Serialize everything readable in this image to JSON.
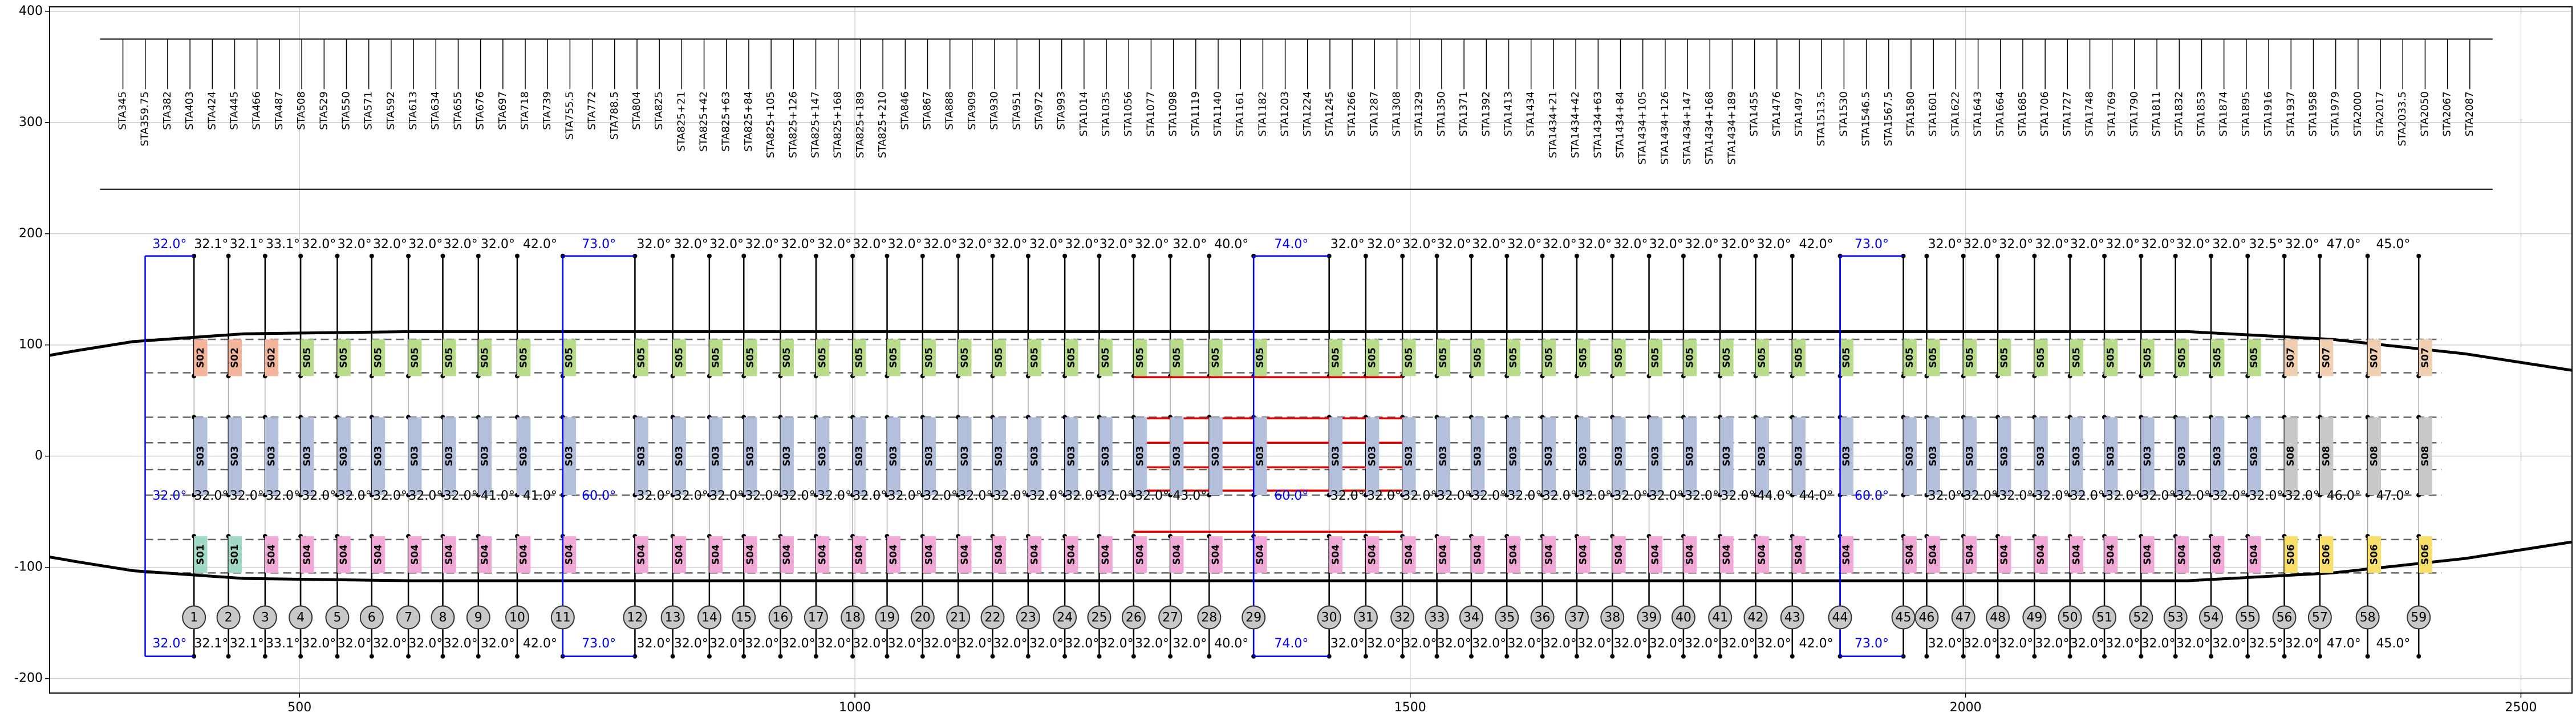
{
  "chart_data": {
    "type": "plan",
    "xlim": [
      275,
      2546
    ],
    "ylim": [
      -213,
      404
    ],
    "xticks": [
      500,
      1000,
      1500,
      2000,
      2500
    ],
    "yticks": [
      -200,
      -100,
      0,
      100,
      200,
      300,
      400
    ],
    "grid": true,
    "stations": [
      "STA345",
      "STA359.75",
      "STA382",
      "STA403",
      "STA424",
      "STA445",
      "STA466",
      "STA487",
      "STA508",
      "STA529",
      "STA550",
      "STA571",
      "STA592",
      "STA613",
      "STA634",
      "STA655",
      "STA676",
      "STA697",
      "STA718",
      "STA739",
      "STA755.5",
      "STA772",
      "STA788.5",
      "STA804",
      "STA825",
      "STA825+21",
      "STA825+42",
      "STA825+63",
      "STA825+84",
      "STA825+105",
      "STA825+126",
      "STA825+147",
      "STA825+168",
      "STA825+189",
      "STA825+210",
      "STA846",
      "STA867",
      "STA888",
      "STA909",
      "STA930",
      "STA951",
      "STA972",
      "STA993",
      "STA1014",
      "STA1035",
      "STA1056",
      "STA1077",
      "STA1098",
      "STA1119",
      "STA1140",
      "STA1161",
      "STA1182",
      "STA1203",
      "STA1224",
      "STA1245",
      "STA1266",
      "STA1287",
      "STA1308",
      "STA1329",
      "STA1350",
      "STA1371",
      "STA1392",
      "STA1413",
      "STA1434",
      "STA1434+21",
      "STA1434+42",
      "STA1434+63",
      "STA1434+84",
      "STA1434+105",
      "STA1434+126",
      "STA1434+147",
      "STA1434+168",
      "STA1434+189",
      "STA1455",
      "STA1476",
      "STA1497",
      "STA1513.5",
      "STA1530",
      "STA1546.5",
      "STA1567.5",
      "STA1580",
      "STA1601",
      "STA1622",
      "STA1643",
      "STA1664",
      "STA1685",
      "STA1706",
      "STA1727",
      "STA1748",
      "STA1769",
      "STA1790",
      "STA1811",
      "STA1832",
      "STA1853",
      "STA1874",
      "STA1895",
      "STA1916",
      "STA1937",
      "STA1958",
      "STA1979",
      "STA2000",
      "STA2017",
      "STA2033.5",
      "STA2050",
      "STA2067",
      "STA2087"
    ],
    "station_xlim": [
      341,
      2454
    ],
    "station_ylim": [
      240,
      375
    ],
    "lead_x": 361,
    "frame_numbers": [
      1,
      2,
      3,
      4,
      5,
      6,
      7,
      8,
      9,
      10,
      11,
      12,
      13,
      14,
      15,
      16,
      17,
      18,
      19,
      20,
      21,
      22,
      23,
      24,
      25,
      26,
      27,
      28,
      29,
      30,
      31,
      32,
      33,
      34,
      35,
      36,
      37,
      38,
      39,
      40,
      41,
      42,
      43,
      44,
      45,
      46,
      47,
      48,
      49,
      50,
      51,
      52,
      53,
      54,
      55,
      56,
      57,
      58,
      59
    ],
    "frame_x": [
      405,
      436,
      469,
      501,
      534,
      565,
      598,
      629,
      661,
      696,
      737,
      802,
      836,
      869,
      900,
      933,
      965,
      998,
      1029,
      1061,
      1093,
      1124,
      1156,
      1189,
      1220,
      1251,
      1284,
      1319,
      1359,
      1427,
      1460,
      1493,
      1524,
      1555,
      1587,
      1619,
      1650,
      1682,
      1715,
      1746,
      1779,
      1811,
      1844,
      1887,
      1944,
      1965,
      1998,
      2029,
      2062,
      2094,
      2125,
      2158,
      2189,
      2221,
      2254,
      2287,
      2319,
      2362,
      2408
    ],
    "top_angles": [
      "32.0°",
      "32.1°",
      "32.1°",
      "33.1°",
      "32.0°",
      "32.0°",
      "32.0°",
      "32.0°",
      "32.0°",
      "32.0°",
      "42.0°",
      "73.0°",
      "32.0°",
      "32.0°",
      "32.0°",
      "32.0°",
      "32.0°",
      "32.0°",
      "32.0°",
      "32.0°",
      "32.0°",
      "32.0°",
      "32.0°",
      "32.0°",
      "32.0°",
      "32.0°",
      "32.0°",
      "32.0°",
      "40.0°",
      "74.0°",
      "32.0°",
      "32.0°",
      "32.0°",
      "32.0°",
      "32.0°",
      "32.0°",
      "32.0°",
      "32.0°",
      "32.0°",
      "32.0°",
      "32.0°",
      "32.0°",
      "32.0°",
      "42.0°",
      "73.0°",
      null,
      "32.0°",
      "32.0°",
      "32.0°",
      "32.0°",
      "32.0°",
      "32.0°",
      "32.0°",
      "32.0°",
      "32.0°",
      "32.5°",
      "32.0°",
      "47.0°",
      "45.0°"
    ],
    "middle_angles": [
      "32.0°",
      "32.0°",
      "32.0°",
      "32.0°",
      "32.0°",
      "32.0°",
      "32.0°",
      "32.0°",
      "32.0°",
      "41.0°",
      "41.0°",
      "60.0°",
      "32.0°",
      "32.0°",
      "32.0°",
      "32.0°",
      "32.0°",
      "32.0°",
      "32.0°",
      "32.0°",
      "32.0°",
      "32.0°",
      "32.0°",
      "32.0°",
      "32.0°",
      "32.0°",
      "32.0°",
      "43.0°",
      null,
      "60.0°",
      "32.0°",
      "32.0°",
      "32.0°",
      "32.0°",
      "32.0°",
      "32.0°",
      "32.0°",
      "32.0°",
      "32.0°",
      "32.0°",
      "32.0°",
      "32.0°",
      "44.0°",
      "44.0°",
      "60.0°",
      null,
      "32.0°",
      "32.0°",
      "32.0°",
      "32.0°",
      "32.0°",
      "32.0°",
      "32.0°",
      "32.0°",
      "32.0°",
      "32.0°",
      "32.0°",
      "46.0°",
      "47.0°"
    ],
    "bottom_angles": [
      "32.0°",
      "32.1°",
      "32.1°",
      "33.1°",
      "32.0°",
      "32.0°",
      "32.0°",
      "32.0°",
      "32.0°",
      "32.0°",
      "42.0°",
      "73.0°",
      "32.0°",
      "32.0°",
      "32.0°",
      "32.0°",
      "32.0°",
      "32.0°",
      "32.0°",
      "32.0°",
      "32.0°",
      "32.0°",
      "32.0°",
      "32.0°",
      "32.0°",
      "32.0°",
      "32.0°",
      "32.0°",
      "40.0°",
      "74.0°",
      "32.0°",
      "32.0°",
      "32.0°",
      "32.0°",
      "32.0°",
      "32.0°",
      "32.0°",
      "32.0°",
      "32.0°",
      "32.0°",
      "32.0°",
      "32.0°",
      "32.0°",
      "42.0°",
      "73.0°",
      null,
      "32.0°",
      "32.0°",
      "32.0°",
      "32.0°",
      "32.0°",
      "32.0°",
      "32.0°",
      "32.0°",
      "32.0°",
      "32.5°",
      "32.0°",
      "47.0°",
      "45.0°"
    ],
    "angle_y": [
      190,
      -36,
      -169
    ],
    "blue_gaps": [
      0,
      11,
      29,
      44
    ],
    "highlight_color": "#0000ff",
    "upper_labels": [
      "S02",
      "S02",
      "S02",
      "S05",
      "S05",
      "S05",
      "S05",
      "S05",
      "S05",
      "S05",
      "S05",
      "S05",
      "S05",
      "S05",
      "S05",
      "S05",
      "S05",
      "S05",
      "S05",
      "S05",
      "S05",
      "S05",
      "S05",
      "S05",
      "S05",
      "S05",
      "S05",
      "S05",
      "S05",
      "S05",
      "S05",
      "S05",
      "S05",
      "S05",
      "S05",
      "S05",
      "S05",
      "S05",
      "S05",
      "S05",
      "S05",
      "S05",
      "S05",
      "S05",
      "S05",
      "S05",
      "S05",
      "S05",
      "S05",
      "S05",
      "S05",
      "S05",
      "S05",
      "S05",
      "S05",
      "S07",
      "S07",
      "S07",
      "S07"
    ],
    "middle_labels": [
      "S03",
      "S03",
      "S03",
      "S03",
      "S03",
      "S03",
      "S03",
      "S03",
      "S03",
      "S03",
      "S03",
      "S03",
      "S03",
      "S03",
      "S03",
      "S03",
      "S03",
      "S03",
      "S03",
      "S03",
      "S03",
      "S03",
      "S03",
      "S03",
      "S03",
      "S03",
      "S03",
      "S03",
      "S03",
      "S03",
      "S03",
      "S03",
      "S03",
      "S03",
      "S03",
      "S03",
      "S03",
      "S03",
      "S03",
      "S03",
      "S03",
      "S03",
      "S03",
      "S03",
      "S03",
      "S03",
      "S03",
      "S03",
      "S03",
      "S03",
      "S03",
      "S03",
      "S03",
      "S03",
      "S03",
      "S08",
      "S08",
      "S08",
      "S08"
    ],
    "lower_labels": [
      "S01",
      "S01",
      "S04",
      "S04",
      "S04",
      "S04",
      "S04",
      "S04",
      "S04",
      "S04",
      "S04",
      "S04",
      "S04",
      "S04",
      "S04",
      "S04",
      "S04",
      "S04",
      "S04",
      "S04",
      "S04",
      "S04",
      "S04",
      "S04",
      "S04",
      "S04",
      "S04",
      "S04",
      "S04",
      "S04",
      "S04",
      "S04",
      "S04",
      "S04",
      "S04",
      "S04",
      "S04",
      "S04",
      "S04",
      "S04",
      "S04",
      "S04",
      "S04",
      "S04",
      "S04",
      "S04",
      "S04",
      "S04",
      "S04",
      "S04",
      "S04",
      "S04",
      "S04",
      "S04",
      "S04",
      "S06",
      "S06",
      "S06",
      "S06"
    ],
    "segment_colors": {
      "S01": "#9fd8c5",
      "S02": "#f4b49a",
      "S03": "#b4bfdc",
      "S04": "#f0a8d6",
      "S05": "#b8dc8a",
      "S06": "#f7df6a",
      "S07": "#efcfb0",
      "S08": "#c8c8c8"
    },
    "upper_band": [
      72,
      105
    ],
    "middle_band": [
      -35,
      35
    ],
    "lower_band": [
      -105,
      -72
    ],
    "dashed_y": [
      105,
      75,
      35,
      12,
      -12,
      -35,
      -75,
      -105
    ],
    "red_x": [
      1251,
      1493
    ],
    "red_y": [
      71,
      34,
      12,
      -10,
      -31,
      -68
    ],
    "hull_top": {
      "x": [
        225,
        300,
        350,
        450,
        600,
        2200,
        2330,
        2450,
        2560
      ],
      "y": [
        82,
        95,
        103,
        110,
        112,
        112,
        105,
        92,
        75
      ]
    },
    "hull_bottom": {
      "x": [
        225,
        300,
        350,
        450,
        600,
        2200,
        2330,
        2450,
        2560
      ],
      "y": [
        -82,
        -95,
        -103,
        -110,
        -112,
        -112,
        -105,
        -92,
        -75
      ]
    }
  }
}
